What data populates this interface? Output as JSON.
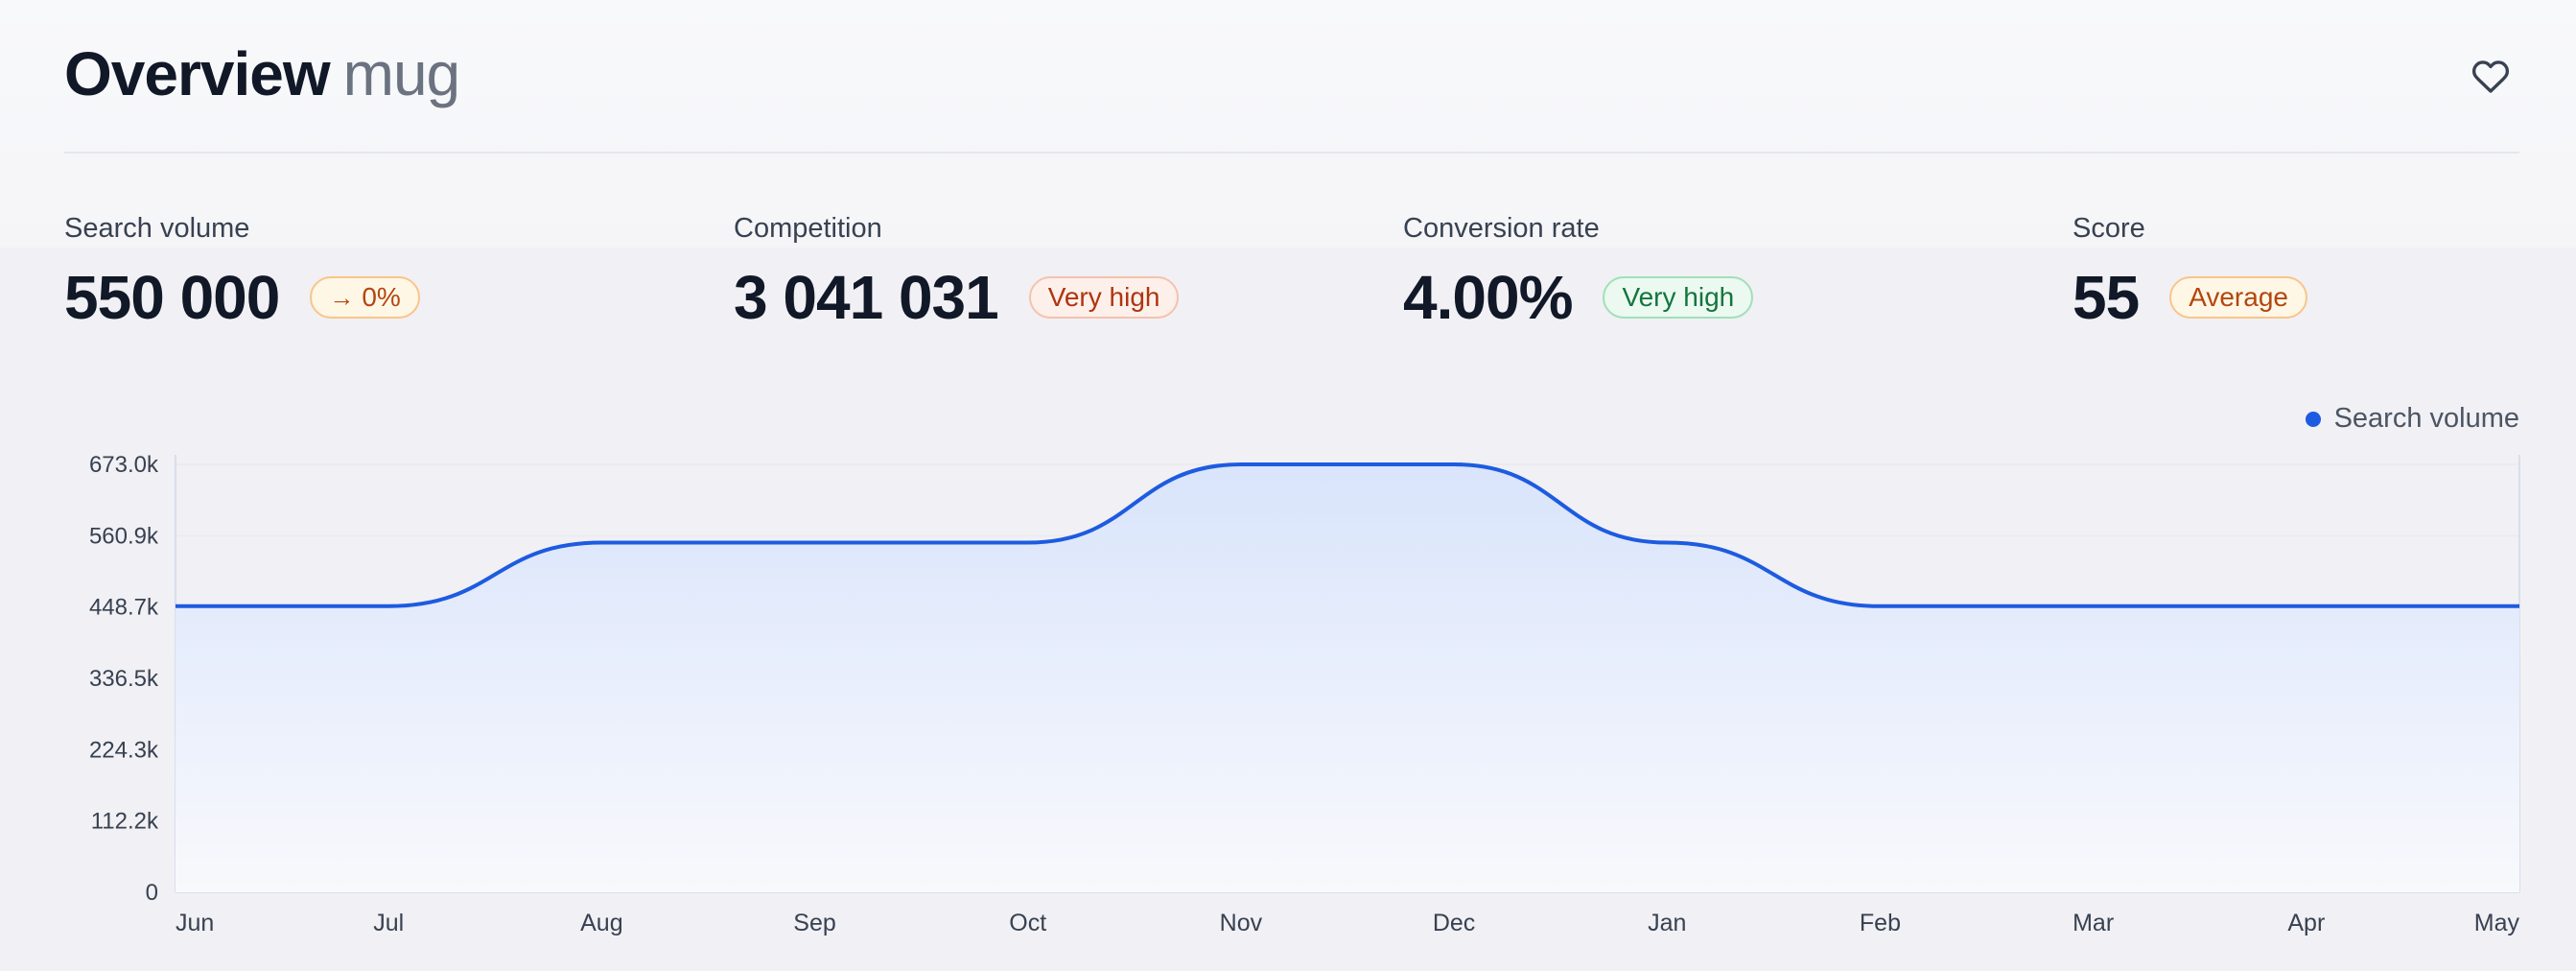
{
  "header": {
    "title": "Overview",
    "keyword": "mug",
    "favorite_icon": "heart-icon"
  },
  "metrics": [
    {
      "label": "Search volume",
      "value": "550 000",
      "badge": "0%",
      "badge_icon": "arrow-right-icon",
      "badge_color": "orange"
    },
    {
      "label": "Competition",
      "value": "3 041 031",
      "badge": "Very high",
      "badge_color": "red"
    },
    {
      "label": "Conversion rate",
      "value": "4.00%",
      "badge": "Very high",
      "badge_color": "green"
    },
    {
      "label": "Score",
      "value": "55",
      "badge": "Average",
      "badge_color": "orange"
    }
  ],
  "chart_data": {
    "type": "area",
    "categories": [
      "Jun",
      "Jul",
      "Aug",
      "Sep",
      "Oct",
      "Nov",
      "Dec",
      "Jan",
      "Feb",
      "Mar",
      "Apr",
      "May"
    ],
    "series": [
      {
        "name": "Search volume",
        "values": [
          450000,
          450000,
          550000,
          550000,
          550000,
          673000,
          673000,
          550000,
          450000,
          450000,
          450000,
          450000
        ]
      }
    ],
    "yticks": [
      "0",
      "112.2k",
      "224.3k",
      "336.5k",
      "448.7k",
      "560.9k",
      "673.0k"
    ],
    "ylim": [
      0,
      673000
    ],
    "legend": "top-right",
    "grid": true,
    "line_color": "#1d5be0"
  }
}
